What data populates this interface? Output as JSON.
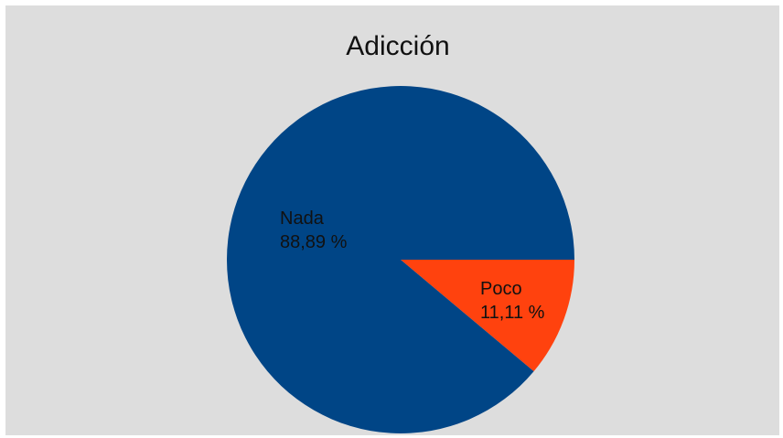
{
  "chart_data": {
    "type": "pie",
    "title": "Adicción",
    "slices": [
      {
        "name": "Poco",
        "value": 11.11,
        "percent_label": "11,11 %",
        "color": "#ff420e"
      },
      {
        "name": "Nada",
        "value": 88.89,
        "percent_label": "88,89 %",
        "color": "#004586"
      }
    ],
    "background": "#dddddd",
    "legend": "none"
  }
}
